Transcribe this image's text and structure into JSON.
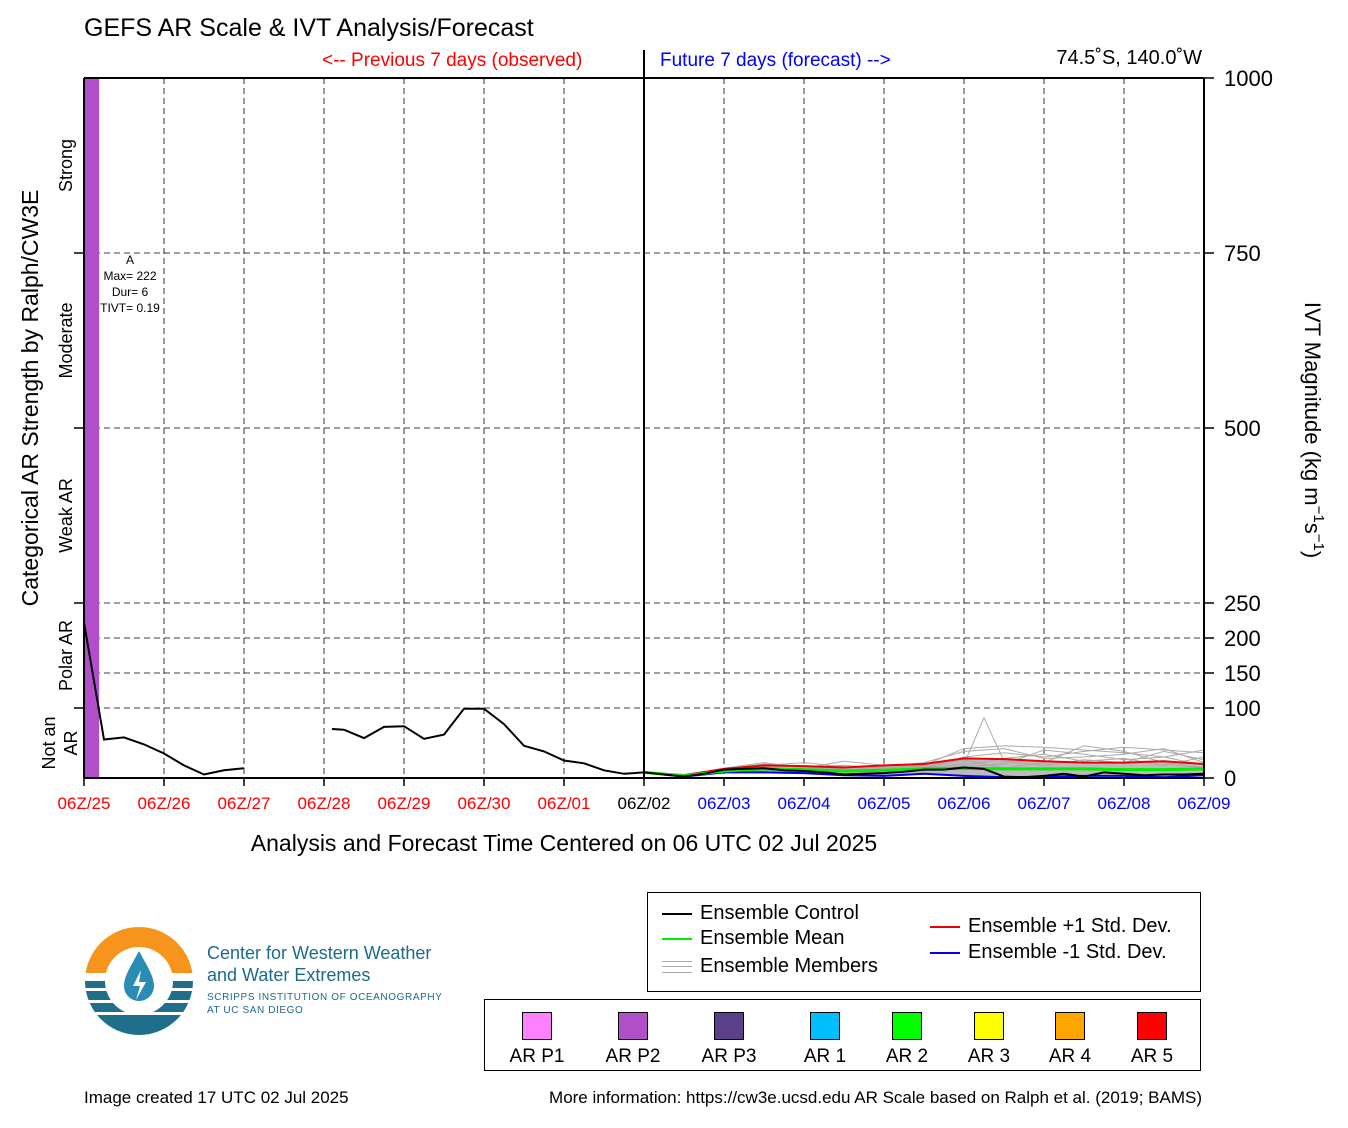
{
  "header": {
    "title": "GEFS AR Scale & IVT Analysis/Forecast",
    "previous_label": "<-- Previous 7 days (observed)",
    "future_label": "Future 7 days (forecast) -->",
    "location": "74.5˚S, 140.0˚W"
  },
  "chart_data": {
    "type": "line",
    "xlabel": "Analysis and Forecast Time Centered on 06 UTC 02 Jul 2025",
    "ylabel_left": "Categorical AR Strength by Ralph/CW3E",
    "ylabel_right": "IVT Magnitude (kg m",
    "ylabel_right_sup1": "−1",
    "ylabel_right_mid": "s",
    "ylabel_right_sup2": "−1",
    "ylabel_right_end": ")",
    "ylim": [
      0,
      1000
    ],
    "xlim_days": [
      0,
      14
    ],
    "right_ticks": [
      {
        "value": 0,
        "label": "0"
      },
      {
        "value": 100,
        "label": "100"
      },
      {
        "value": 150,
        "label": "150"
      },
      {
        "value": 200,
        "label": "200"
      },
      {
        "value": 250,
        "label": "250"
      },
      {
        "value": 500,
        "label": "500"
      },
      {
        "value": 750,
        "label": "750"
      },
      {
        "value": 1000,
        "label": "1000"
      }
    ],
    "x_ticks": [
      {
        "label": "06Z/25",
        "color": "#ff0000"
      },
      {
        "label": "06Z/26",
        "color": "#ff0000"
      },
      {
        "label": "06Z/27",
        "color": "#ff0000"
      },
      {
        "label": "06Z/28",
        "color": "#ff0000"
      },
      {
        "label": "06Z/29",
        "color": "#ff0000"
      },
      {
        "label": "06Z/30",
        "color": "#ff0000"
      },
      {
        "label": "06Z/01",
        "color": "#ff0000"
      },
      {
        "label": "06Z/02",
        "color": "#000000"
      },
      {
        "label": "06Z/03",
        "color": "#0000ff"
      },
      {
        "label": "06Z/04",
        "color": "#0000ff"
      },
      {
        "label": "06Z/05",
        "color": "#0000ff"
      },
      {
        "label": "06Z/06",
        "color": "#0000ff"
      },
      {
        "label": "06Z/07",
        "color": "#0000ff"
      },
      {
        "label": "06Z/08",
        "color": "#0000ff"
      },
      {
        "label": "06Z/09",
        "color": "#0000ff"
      }
    ],
    "categories": [
      {
        "label": "Not an AR",
        "lines": [
          "Not an",
          "AR"
        ],
        "from": 0,
        "to": 100
      },
      {
        "label": "Polar AR",
        "lines": [
          "Polar AR"
        ],
        "from": 100,
        "to": 250
      },
      {
        "label": "Weak AR",
        "lines": [
          "Weak AR"
        ],
        "from": 250,
        "to": 500
      },
      {
        "label": "Moderate",
        "lines": [
          "Moderate"
        ],
        "from": 500,
        "to": 750
      },
      {
        "label": "Strong",
        "lines": [
          "Strong"
        ],
        "from": 750,
        "to": 1000
      }
    ],
    "ar_event_bar": {
      "start_day": 0.0,
      "end_day": 0.19,
      "color": "#b04fc8",
      "category": "AR P2"
    },
    "ar_event_annotation": [
      "A",
      "Max= 222",
      "Dur= 6",
      "TIVT= 0.19"
    ],
    "observed_segments": [
      {
        "name": "observed-1",
        "points": [
          [
            0.0,
            222
          ],
          [
            0.25,
            55
          ],
          [
            0.5,
            58
          ],
          [
            0.75,
            48
          ],
          [
            1.0,
            35
          ],
          [
            1.25,
            18
          ],
          [
            1.5,
            5
          ],
          [
            1.75,
            11
          ],
          [
            2.0,
            14
          ]
        ]
      },
      {
        "name": "observed-2",
        "points": [
          [
            3.1,
            70
          ],
          [
            3.25,
            69
          ],
          [
            3.5,
            57
          ],
          [
            3.75,
            73
          ],
          [
            4.0,
            74
          ],
          [
            4.25,
            56
          ],
          [
            4.5,
            62
          ],
          [
            4.75,
            99
          ],
          [
            5.0,
            99
          ],
          [
            5.25,
            77
          ],
          [
            5.5,
            46
          ],
          [
            5.75,
            38
          ],
          [
            6.0,
            25
          ],
          [
            6.25,
            21
          ],
          [
            6.5,
            11
          ],
          [
            6.75,
            6
          ],
          [
            7.0,
            8
          ]
        ]
      }
    ],
    "series": [
      {
        "name": "Ensemble Control",
        "color": "#000000",
        "points": [
          [
            7.0,
            8
          ],
          [
            7.25,
            5
          ],
          [
            7.5,
            2
          ],
          [
            7.75,
            6
          ],
          [
            8.0,
            12
          ],
          [
            8.25,
            13
          ],
          [
            8.5,
            14
          ],
          [
            8.75,
            11
          ],
          [
            9.0,
            10
          ],
          [
            9.25,
            8
          ],
          [
            9.5,
            5
          ],
          [
            9.75,
            6
          ],
          [
            10.0,
            7
          ],
          [
            10.25,
            9
          ],
          [
            10.5,
            12
          ],
          [
            10.75,
            12
          ],
          [
            11.0,
            15
          ],
          [
            11.25,
            13
          ],
          [
            11.5,
            2
          ],
          [
            11.75,
            1
          ],
          [
            12.0,
            3
          ],
          [
            12.25,
            6
          ],
          [
            12.5,
            2
          ],
          [
            12.75,
            8
          ],
          [
            13.0,
            6
          ],
          [
            13.25,
            4
          ],
          [
            13.5,
            5
          ],
          [
            13.75,
            5
          ],
          [
            14.0,
            6
          ]
        ]
      },
      {
        "name": "Ensemble Mean",
        "color": "#00ee00",
        "points": [
          [
            7.0,
            8
          ],
          [
            7.5,
            3
          ],
          [
            8.0,
            10
          ],
          [
            8.5,
            13
          ],
          [
            9.0,
            12
          ],
          [
            9.5,
            10
          ],
          [
            10.0,
            11
          ],
          [
            10.5,
            13
          ],
          [
            11.0,
            14
          ],
          [
            11.5,
            13
          ],
          [
            12.0,
            13
          ],
          [
            12.5,
            13
          ],
          [
            13.0,
            12
          ],
          [
            13.5,
            12
          ],
          [
            14.0,
            13
          ]
        ]
      },
      {
        "name": "Ensemble +1 Std. Dev.",
        "color": "#ee0000",
        "points": [
          [
            7.0,
            8
          ],
          [
            7.5,
            4
          ],
          [
            8.0,
            13
          ],
          [
            8.5,
            18
          ],
          [
            9.0,
            17
          ],
          [
            9.5,
            15
          ],
          [
            10.0,
            18
          ],
          [
            10.5,
            20
          ],
          [
            11.0,
            28
          ],
          [
            11.5,
            27
          ],
          [
            12.0,
            24
          ],
          [
            12.5,
            22
          ],
          [
            13.0,
            22
          ],
          [
            13.5,
            24
          ],
          [
            14.0,
            20
          ]
        ]
      },
      {
        "name": "Ensemble -1 Std. Dev.",
        "color": "#0000ee",
        "points": [
          [
            7.0,
            8
          ],
          [
            7.5,
            2
          ],
          [
            8.0,
            8
          ],
          [
            8.5,
            8
          ],
          [
            9.0,
            7
          ],
          [
            9.5,
            4
          ],
          [
            10.0,
            3
          ],
          [
            10.5,
            6
          ],
          [
            11.0,
            3
          ],
          [
            11.5,
            1
          ],
          [
            12.0,
            2
          ],
          [
            12.5,
            3
          ],
          [
            13.0,
            3
          ],
          [
            13.5,
            1
          ],
          [
            14.0,
            4
          ]
        ]
      }
    ],
    "members_color": "#aaaaaa",
    "members": [
      [
        [
          7.0,
          8
        ],
        [
          7.5,
          4
        ],
        [
          8.0,
          14
        ],
        [
          8.5,
          22
        ],
        [
          9.0,
          14
        ],
        [
          9.5,
          24
        ],
        [
          10.0,
          18
        ],
        [
          10.5,
          15
        ],
        [
          11.0,
          20
        ],
        [
          11.25,
          86
        ],
        [
          11.5,
          24
        ],
        [
          12.0,
          18
        ],
        [
          12.5,
          26
        ],
        [
          13.0,
          22
        ],
        [
          13.5,
          38
        ],
        [
          14.0,
          26
        ]
      ],
      [
        [
          7.0,
          8
        ],
        [
          7.5,
          3
        ],
        [
          8.0,
          10
        ],
        [
          8.5,
          13
        ],
        [
          9.0,
          9
        ],
        [
          9.5,
          12
        ],
        [
          10.0,
          14
        ],
        [
          10.5,
          18
        ],
        [
          11.0,
          42
        ],
        [
          11.5,
          46
        ],
        [
          12.0,
          44
        ],
        [
          12.5,
          40
        ],
        [
          13.0,
          36
        ],
        [
          13.5,
          30
        ],
        [
          14.0,
          18
        ]
      ],
      [
        [
          7.0,
          8
        ],
        [
          7.5,
          5
        ],
        [
          8.0,
          12
        ],
        [
          8.5,
          18
        ],
        [
          9.0,
          22
        ],
        [
          9.5,
          16
        ],
        [
          10.0,
          12
        ],
        [
          10.5,
          14
        ],
        [
          11.0,
          30
        ],
        [
          11.5,
          36
        ],
        [
          12.0,
          30
        ],
        [
          12.5,
          38
        ],
        [
          13.0,
          44
        ],
        [
          13.5,
          40
        ],
        [
          14.0,
          36
        ]
      ],
      [
        [
          7.0,
          8
        ],
        [
          7.5,
          2
        ],
        [
          8.0,
          8
        ],
        [
          8.5,
          10
        ],
        [
          9.0,
          8
        ],
        [
          9.5,
          6
        ],
        [
          10.0,
          8
        ],
        [
          10.5,
          10
        ],
        [
          11.0,
          18
        ],
        [
          11.5,
          28
        ],
        [
          12.0,
          34
        ],
        [
          12.5,
          24
        ],
        [
          13.0,
          28
        ],
        [
          13.5,
          18
        ],
        [
          14.0,
          30
        ]
      ],
      [
        [
          7.0,
          8
        ],
        [
          7.5,
          4
        ],
        [
          8.0,
          11
        ],
        [
          8.5,
          16
        ],
        [
          9.0,
          12
        ],
        [
          9.5,
          10
        ],
        [
          10.0,
          16
        ],
        [
          10.5,
          22
        ],
        [
          11.0,
          38
        ],
        [
          11.5,
          42
        ],
        [
          12.0,
          28
        ],
        [
          12.5,
          30
        ],
        [
          13.0,
          34
        ],
        [
          13.5,
          42
        ],
        [
          14.0,
          22
        ]
      ],
      [
        [
          7.0,
          8
        ],
        [
          7.5,
          3
        ],
        [
          8.0,
          9
        ],
        [
          8.5,
          11
        ],
        [
          9.0,
          15
        ],
        [
          9.5,
          13
        ],
        [
          10.0,
          10
        ],
        [
          10.5,
          12
        ],
        [
          11.0,
          16
        ],
        [
          11.5,
          20
        ],
        [
          12.0,
          40
        ],
        [
          12.5,
          34
        ],
        [
          13.0,
          26
        ],
        [
          13.5,
          30
        ],
        [
          14.0,
          40
        ]
      ],
      [
        [
          7.0,
          8
        ],
        [
          7.5,
          5
        ],
        [
          8.0,
          13
        ],
        [
          8.5,
          20
        ],
        [
          9.0,
          16
        ],
        [
          9.5,
          18
        ],
        [
          10.0,
          14
        ],
        [
          10.5,
          16
        ],
        [
          11.0,
          26
        ],
        [
          11.5,
          14
        ],
        [
          12.0,
          22
        ],
        [
          12.5,
          46
        ],
        [
          13.0,
          38
        ],
        [
          13.5,
          22
        ],
        [
          14.0,
          14
        ]
      ]
    ],
    "spread_fill_color": "#bbbbbb",
    "current_time_day": 7.0
  },
  "legend": {
    "items": [
      {
        "label": "Ensemble Control",
        "color": "#000000"
      },
      {
        "label": "Ensemble Mean",
        "color": "#00ee00"
      },
      {
        "label": "Ensemble Members",
        "color": "#aaaaaa"
      },
      {
        "label": "Ensemble +1 Std. Dev.",
        "color": "#ee0000"
      },
      {
        "label": "Ensemble -1 Std. Dev.",
        "color": "#0000ee"
      }
    ]
  },
  "ar_categories": [
    {
      "label": "AR P1",
      "color": "#ff80ff"
    },
    {
      "label": "AR P2",
      "color": "#b04fc8"
    },
    {
      "label": "AR P3",
      "color": "#5a4088"
    },
    {
      "label": "AR 1",
      "color": "#00bfff"
    },
    {
      "label": "AR 2",
      "color": "#00ff00"
    },
    {
      "label": "AR 3",
      "color": "#ffff00"
    },
    {
      "label": "AR 4",
      "color": "#ffa500"
    },
    {
      "label": "AR 5",
      "color": "#ff0000"
    }
  ],
  "org": {
    "line1": "Center for Western Weather",
    "line2": "and Water Extremes",
    "line3": "SCRIPPS INSTITUTION OF OCEANOGRAPHY",
    "line4": "AT UC SAN DIEGO",
    "logo_icon": "cw3e-logo-icon"
  },
  "footer": {
    "created": "Image created 17 UTC 02 Jul 2025",
    "info": "More information: https://cw3e.ucsd.edu AR Scale based on Ralph et al. (2019; BAMS)"
  }
}
